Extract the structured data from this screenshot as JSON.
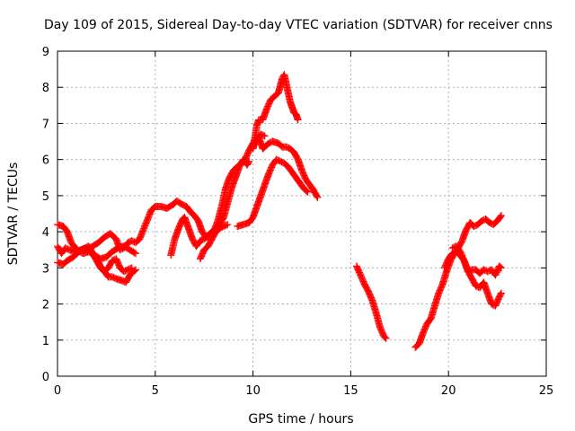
{
  "chart_data": {
    "type": "scatter",
    "title": "Day 109 of 2015, Sidereal Day-to-day VTEC variation (SDTVAR) for receiver cnns",
    "xlabel": "GPS time / hours",
    "ylabel": "SDTVAR / TECUs",
    "xlim": [
      0,
      25
    ],
    "ylim": [
      0,
      9
    ],
    "xticks": [
      "0",
      "5",
      "10",
      "15",
      "20",
      "25"
    ],
    "yticks": [
      "0",
      "1",
      "2",
      "3",
      "4",
      "5",
      "6",
      "7",
      "8",
      "9"
    ],
    "grid": true,
    "marker": "+",
    "color": "#ff0000",
    "series": [
      {
        "points": [
          [
            0,
            4.2
          ],
          [
            0.3,
            4.15
          ],
          [
            0.5,
            4.0
          ],
          [
            0.7,
            3.7
          ],
          [
            1.0,
            3.5
          ],
          [
            1.3,
            3.4
          ],
          [
            1.6,
            3.45
          ],
          [
            1.9,
            3.35
          ],
          [
            2.2,
            3.25
          ],
          [
            2.5,
            3.3
          ],
          [
            2.8,
            3.45
          ],
          [
            3.1,
            3.55
          ],
          [
            3.4,
            3.6
          ],
          [
            3.7,
            3.5
          ],
          [
            4.0,
            3.4
          ]
        ]
      },
      {
        "points": [
          [
            0,
            3.15
          ],
          [
            0.3,
            3.1
          ],
          [
            0.5,
            3.2
          ],
          [
            0.8,
            3.3
          ],
          [
            1.1,
            3.45
          ],
          [
            1.4,
            3.55
          ],
          [
            1.6,
            3.6
          ],
          [
            1.8,
            3.4
          ],
          [
            2.0,
            3.25
          ],
          [
            2.2,
            3.05
          ],
          [
            2.4,
            2.9
          ],
          [
            2.6,
            2.75
          ],
          [
            2.8,
            2.75
          ],
          [
            3.0,
            2.7
          ],
          [
            3.3,
            2.65
          ],
          [
            3.5,
            2.6
          ],
          [
            3.7,
            2.8
          ],
          [
            4.0,
            2.95
          ]
        ]
      },
      {
        "points": [
          [
            0,
            3.6
          ],
          [
            0.2,
            3.4
          ],
          [
            0.4,
            3.55
          ],
          [
            0.6,
            3.5
          ],
          [
            0.9,
            3.45
          ],
          [
            1.2,
            3.5
          ],
          [
            1.5,
            3.55
          ],
          [
            1.8,
            3.4
          ],
          [
            2.0,
            3.2
          ],
          [
            2.2,
            3.0
          ],
          [
            2.4,
            2.9
          ],
          [
            2.6,
            3.0
          ],
          [
            2.8,
            3.2
          ],
          [
            3.0,
            3.25
          ],
          [
            3.2,
            3.0
          ],
          [
            3.4,
            2.9
          ],
          [
            3.6,
            2.95
          ],
          [
            3.8,
            3.0
          ]
        ]
      },
      {
        "points": [
          [
            1.2,
            3.5
          ],
          [
            1.5,
            3.5
          ],
          [
            1.8,
            3.6
          ],
          [
            2.1,
            3.7
          ],
          [
            2.4,
            3.85
          ],
          [
            2.7,
            3.95
          ],
          [
            3.0,
            3.8
          ],
          [
            3.2,
            3.5
          ],
          [
            3.4,
            3.55
          ],
          [
            3.6,
            3.7
          ],
          [
            3.8,
            3.75
          ],
          [
            4.0,
            3.7
          ],
          [
            4.2,
            3.8
          ],
          [
            4.5,
            4.2
          ],
          [
            4.8,
            4.6
          ],
          [
            5.0,
            4.7
          ],
          [
            5.3,
            4.7
          ],
          [
            5.6,
            4.65
          ],
          [
            5.9,
            4.75
          ],
          [
            6.1,
            4.85
          ],
          [
            6.4,
            4.75
          ],
          [
            6.6,
            4.7
          ],
          [
            6.8,
            4.55
          ],
          [
            7.0,
            4.45
          ],
          [
            7.2,
            4.3
          ],
          [
            7.4,
            4.0
          ],
          [
            7.6,
            3.85
          ],
          [
            7.8,
            3.85
          ],
          [
            8.0,
            4.0
          ],
          [
            8.2,
            4.3
          ],
          [
            8.4,
            4.7
          ],
          [
            8.6,
            5.2
          ],
          [
            8.8,
            5.5
          ],
          [
            9.0,
            5.7
          ],
          [
            9.2,
            5.8
          ],
          [
            9.4,
            5.9
          ],
          [
            9.6,
            6.0
          ],
          [
            9.8,
            6.25
          ],
          [
            10.0,
            6.45
          ],
          [
            10.2,
            6.55
          ],
          [
            10.4,
            6.7
          ],
          [
            10.6,
            6.65
          ]
        ]
      },
      {
        "points": [
          [
            5.8,
            3.35
          ],
          [
            6.0,
            3.8
          ],
          [
            6.2,
            4.1
          ],
          [
            6.4,
            4.35
          ],
          [
            6.5,
            4.4
          ],
          [
            6.7,
            4.1
          ],
          [
            6.9,
            3.8
          ],
          [
            7.1,
            3.6
          ],
          [
            7.3,
            3.75
          ],
          [
            7.5,
            3.8
          ],
          [
            7.7,
            3.9
          ],
          [
            7.9,
            4.0
          ],
          [
            8.1,
            4.1
          ],
          [
            8.3,
            4.2
          ],
          [
            8.5,
            4.4
          ],
          [
            8.7,
            4.8
          ],
          [
            8.9,
            5.2
          ],
          [
            9.1,
            5.5
          ],
          [
            9.3,
            5.8
          ],
          [
            9.5,
            6.0
          ],
          [
            9.7,
            5.85
          ],
          [
            9.8,
            5.95
          ]
        ]
      },
      {
        "points": [
          [
            7.3,
            3.25
          ],
          [
            7.5,
            3.5
          ],
          [
            7.7,
            3.6
          ],
          [
            7.9,
            3.8
          ],
          [
            8.1,
            4.0
          ],
          [
            8.3,
            4.1
          ],
          [
            8.5,
            4.15
          ],
          [
            8.7,
            4.2
          ]
        ]
      },
      {
        "points": [
          [
            9.2,
            4.15
          ],
          [
            9.5,
            4.2
          ],
          [
            9.8,
            4.25
          ],
          [
            10.0,
            4.4
          ],
          [
            10.2,
            4.7
          ],
          [
            10.4,
            5.0
          ],
          [
            10.6,
            5.3
          ],
          [
            10.8,
            5.6
          ],
          [
            11.0,
            5.85
          ],
          [
            11.2,
            6.0
          ],
          [
            11.4,
            5.95
          ],
          [
            11.6,
            5.9
          ],
          [
            11.8,
            5.8
          ],
          [
            12.0,
            5.65
          ],
          [
            12.2,
            5.5
          ],
          [
            12.4,
            5.35
          ],
          [
            12.6,
            5.2
          ],
          [
            12.8,
            5.1
          ]
        ]
      },
      {
        "points": [
          [
            10.0,
            6.3
          ],
          [
            10.1,
            6.5
          ],
          [
            10.3,
            6.6
          ],
          [
            10.5,
            6.3
          ],
          [
            10.8,
            6.45
          ],
          [
            11.0,
            6.5
          ],
          [
            11.3,
            6.45
          ],
          [
            11.5,
            6.35
          ],
          [
            11.7,
            6.35
          ],
          [
            11.9,
            6.3
          ],
          [
            12.1,
            6.2
          ],
          [
            12.3,
            6.0
          ],
          [
            12.5,
            5.7
          ],
          [
            12.7,
            5.45
          ],
          [
            12.9,
            5.3
          ],
          [
            13.1,
            5.15
          ],
          [
            13.3,
            4.95
          ]
        ]
      },
      {
        "points": [
          [
            10.0,
            6.35
          ],
          [
            10.1,
            6.6
          ],
          [
            10.2,
            6.95
          ],
          [
            10.3,
            7.1
          ],
          [
            10.5,
            7.1
          ],
          [
            10.7,
            7.4
          ],
          [
            10.9,
            7.65
          ],
          [
            11.1,
            7.75
          ],
          [
            11.3,
            7.85
          ],
          [
            11.4,
            8.05
          ],
          [
            11.5,
            8.25
          ],
          [
            11.6,
            8.35
          ],
          [
            11.7,
            8.1
          ],
          [
            11.8,
            7.85
          ],
          [
            11.9,
            7.6
          ],
          [
            12.0,
            7.45
          ],
          [
            12.1,
            7.3
          ],
          [
            12.2,
            7.25
          ],
          [
            12.3,
            7.1
          ]
        ]
      },
      {
        "points": [
          [
            15.3,
            3.05
          ],
          [
            15.5,
            2.8
          ],
          [
            15.7,
            2.55
          ],
          [
            15.9,
            2.35
          ],
          [
            16.1,
            2.1
          ],
          [
            16.3,
            1.75
          ],
          [
            16.5,
            1.35
          ],
          [
            16.7,
            1.1
          ],
          [
            16.8,
            1.05
          ]
        ]
      },
      {
        "points": [
          [
            18.3,
            0.8
          ],
          [
            18.5,
            0.9
          ],
          [
            18.7,
            1.2
          ],
          [
            18.9,
            1.45
          ],
          [
            19.1,
            1.6
          ],
          [
            19.3,
            1.95
          ],
          [
            19.5,
            2.3
          ],
          [
            19.7,
            2.55
          ],
          [
            19.9,
            2.9
          ],
          [
            20.1,
            3.2
          ],
          [
            20.3,
            3.4
          ],
          [
            20.5,
            3.55
          ],
          [
            20.7,
            3.75
          ],
          [
            20.9,
            4.05
          ],
          [
            21.1,
            4.25
          ],
          [
            21.3,
            4.15
          ],
          [
            21.5,
            4.2
          ],
          [
            21.7,
            4.3
          ],
          [
            21.9,
            4.35
          ],
          [
            22.1,
            4.25
          ],
          [
            22.3,
            4.2
          ],
          [
            22.5,
            4.3
          ],
          [
            22.7,
            4.45
          ]
        ]
      },
      {
        "points": [
          [
            19.8,
            3.0
          ],
          [
            20.0,
            3.25
          ],
          [
            20.2,
            3.4
          ],
          [
            20.4,
            3.45
          ],
          [
            20.6,
            3.35
          ],
          [
            20.8,
            3.2
          ],
          [
            21.0,
            2.9
          ],
          [
            21.2,
            2.95
          ],
          [
            21.4,
            2.95
          ],
          [
            21.6,
            2.85
          ],
          [
            21.8,
            2.95
          ],
          [
            22.0,
            2.9
          ],
          [
            22.2,
            2.95
          ],
          [
            22.4,
            2.8
          ],
          [
            22.6,
            3.05
          ],
          [
            22.7,
            3.0
          ]
        ]
      },
      {
        "points": [
          [
            20.2,
            3.55
          ],
          [
            20.4,
            3.6
          ],
          [
            20.6,
            3.45
          ],
          [
            20.8,
            3.2
          ],
          [
            21.0,
            2.9
          ],
          [
            21.2,
            2.7
          ],
          [
            21.4,
            2.5
          ],
          [
            21.6,
            2.45
          ],
          [
            21.8,
            2.6
          ],
          [
            22.0,
            2.3
          ],
          [
            22.2,
            2.0
          ],
          [
            22.4,
            1.95
          ],
          [
            22.6,
            2.2
          ],
          [
            22.7,
            2.3
          ]
        ]
      }
    ]
  }
}
